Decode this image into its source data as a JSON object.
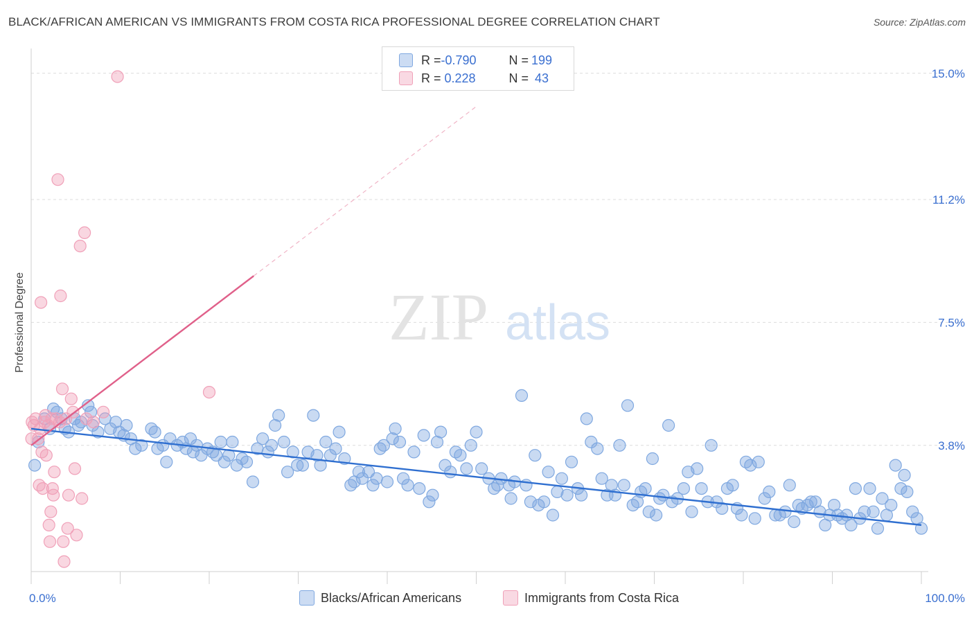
{
  "title": "BLACK/AFRICAN AMERICAN VS IMMIGRANTS FROM COSTA RICA PROFESSIONAL DEGREE CORRELATION CHART",
  "source": "Source: ZipAtlas.com",
  "watermark": {
    "zip": "ZIP",
    "atlas": "atlas"
  },
  "legend": {
    "rows": [
      {
        "r_label": "R = ",
        "r_value": "-0.790",
        "n_label": "N = ",
        "n_value": "199",
        "color": "#7fa8e0"
      },
      {
        "r_label": "R = ",
        "r_value": " 0.228",
        "n_label": "N = ",
        "n_value": " 43",
        "color": "#f0a0b8"
      }
    ]
  },
  "chart_data": {
    "type": "scatter",
    "ylabel": "Professional Degree",
    "xlabel": "",
    "xlim": [
      0,
      100
    ],
    "ylim": [
      0,
      15.6
    ],
    "x_tick_labels": [
      "0.0%",
      "100.0%"
    ],
    "y_ticks": [
      3.8,
      7.5,
      11.2,
      15.0
    ],
    "y_tick_labels": [
      "3.8%",
      "7.5%",
      "11.2%",
      "15.0%"
    ],
    "grid": "horizontal dashed",
    "series": [
      {
        "name": "Blacks/African Americans",
        "color": "#7fa8e0",
        "line_color": "#2f6fd0",
        "trend": {
          "x": [
            0,
            100
          ],
          "y": [
            4.3,
            1.4
          ]
        },
        "points": [
          [
            0.4,
            3.2
          ],
          [
            0.8,
            3.9
          ],
          [
            1.5,
            4.6
          ],
          [
            2.1,
            4.3
          ],
          [
            2.5,
            4.9
          ],
          [
            2.9,
            4.8
          ],
          [
            3.4,
            4.6
          ],
          [
            3.8,
            4.3
          ],
          [
            4.2,
            4.2
          ],
          [
            4.9,
            4.6
          ],
          [
            5.3,
            4.4
          ],
          [
            5.6,
            4.5
          ],
          [
            6.4,
            5.0
          ],
          [
            6.7,
            4.8
          ],
          [
            6.9,
            4.4
          ],
          [
            7.5,
            4.2
          ],
          [
            8.3,
            4.6
          ],
          [
            8.9,
            4.3
          ],
          [
            9.5,
            4.5
          ],
          [
            9.9,
            4.2
          ],
          [
            10.4,
            4.1
          ],
          [
            10.7,
            4.4
          ],
          [
            11.2,
            4.0
          ],
          [
            11.7,
            3.7
          ],
          [
            12.4,
            3.8
          ],
          [
            13.5,
            4.3
          ],
          [
            13.9,
            4.2
          ],
          [
            14.2,
            3.7
          ],
          [
            14.8,
            3.8
          ],
          [
            15.2,
            3.3
          ],
          [
            15.6,
            4.0
          ],
          [
            16.4,
            3.8
          ],
          [
            17.0,
            3.9
          ],
          [
            17.4,
            3.7
          ],
          [
            17.9,
            4.0
          ],
          [
            18.2,
            3.6
          ],
          [
            18.6,
            3.8
          ],
          [
            19.1,
            3.5
          ],
          [
            19.8,
            3.7
          ],
          [
            20.4,
            3.6
          ],
          [
            20.8,
            3.5
          ],
          [
            21.3,
            3.9
          ],
          [
            21.7,
            3.3
          ],
          [
            22.2,
            3.5
          ],
          [
            22.6,
            3.9
          ],
          [
            23.1,
            3.2
          ],
          [
            23.7,
            3.4
          ],
          [
            24.2,
            3.3
          ],
          [
            24.9,
            2.7
          ],
          [
            25.4,
            3.7
          ],
          [
            26.0,
            4.0
          ],
          [
            26.6,
            3.6
          ],
          [
            27.0,
            3.8
          ],
          [
            27.4,
            4.4
          ],
          [
            27.8,
            4.7
          ],
          [
            28.4,
            3.9
          ],
          [
            28.8,
            3.0
          ],
          [
            29.4,
            3.6
          ],
          [
            29.9,
            3.2
          ],
          [
            30.5,
            3.2
          ],
          [
            31.1,
            3.6
          ],
          [
            31.7,
            4.7
          ],
          [
            32.1,
            3.5
          ],
          [
            32.5,
            3.2
          ],
          [
            33.1,
            3.9
          ],
          [
            33.6,
            3.5
          ],
          [
            34.2,
            3.7
          ],
          [
            34.6,
            4.2
          ],
          [
            35.2,
            3.4
          ],
          [
            35.9,
            2.6
          ],
          [
            36.3,
            2.7
          ],
          [
            36.8,
            3.0
          ],
          [
            37.2,
            2.8
          ],
          [
            37.9,
            3.0
          ],
          [
            38.4,
            2.6
          ],
          [
            38.8,
            2.8
          ],
          [
            39.2,
            3.7
          ],
          [
            39.6,
            3.8
          ],
          [
            40.0,
            2.7
          ],
          [
            40.6,
            4.0
          ],
          [
            40.9,
            4.3
          ],
          [
            41.4,
            3.9
          ],
          [
            41.8,
            2.8
          ],
          [
            42.3,
            2.6
          ],
          [
            43.0,
            3.6
          ],
          [
            43.6,
            2.5
          ],
          [
            44.1,
            4.1
          ],
          [
            44.7,
            2.1
          ],
          [
            45.1,
            2.3
          ],
          [
            45.6,
            3.9
          ],
          [
            46.0,
            4.2
          ],
          [
            46.5,
            3.2
          ],
          [
            47.1,
            3.0
          ],
          [
            47.7,
            3.6
          ],
          [
            48.2,
            3.5
          ],
          [
            48.9,
            3.1
          ],
          [
            49.4,
            3.8
          ],
          [
            50.0,
            4.2
          ],
          [
            50.6,
            3.1
          ],
          [
            51.4,
            2.8
          ],
          [
            52.0,
            2.5
          ],
          [
            52.4,
            2.6
          ],
          [
            52.8,
            2.8
          ],
          [
            53.7,
            2.6
          ],
          [
            53.9,
            2.2
          ],
          [
            54.3,
            2.7
          ],
          [
            55.1,
            5.3
          ],
          [
            55.6,
            2.6
          ],
          [
            56.1,
            2.1
          ],
          [
            56.6,
            3.5
          ],
          [
            57.0,
            2.0
          ],
          [
            57.6,
            2.1
          ],
          [
            58.1,
            3.0
          ],
          [
            58.6,
            1.7
          ],
          [
            59.1,
            2.4
          ],
          [
            59.6,
            2.8
          ],
          [
            60.2,
            2.3
          ],
          [
            60.7,
            3.3
          ],
          [
            61.4,
            2.5
          ],
          [
            61.8,
            2.3
          ],
          [
            62.4,
            4.6
          ],
          [
            62.9,
            3.9
          ],
          [
            63.6,
            3.7
          ],
          [
            64.1,
            2.8
          ],
          [
            64.7,
            2.3
          ],
          [
            65.2,
            2.6
          ],
          [
            65.6,
            2.3
          ],
          [
            66.1,
            3.8
          ],
          [
            66.6,
            2.6
          ],
          [
            67.0,
            5.0
          ],
          [
            67.6,
            2.0
          ],
          [
            68.1,
            2.1
          ],
          [
            68.5,
            2.4
          ],
          [
            69.0,
            2.5
          ],
          [
            69.4,
            1.8
          ],
          [
            69.8,
            3.4
          ],
          [
            70.2,
            1.7
          ],
          [
            70.6,
            2.2
          ],
          [
            71.0,
            2.3
          ],
          [
            71.6,
            4.4
          ],
          [
            72.0,
            2.1
          ],
          [
            72.6,
            2.2
          ],
          [
            73.3,
            2.5
          ],
          [
            73.8,
            3.0
          ],
          [
            74.2,
            1.8
          ],
          [
            74.8,
            3.1
          ],
          [
            75.3,
            2.5
          ],
          [
            76.0,
            2.1
          ],
          [
            76.4,
            3.8
          ],
          [
            77.0,
            2.1
          ],
          [
            77.6,
            1.9
          ],
          [
            78.2,
            2.5
          ],
          [
            78.8,
            2.6
          ],
          [
            79.3,
            1.9
          ],
          [
            79.8,
            1.7
          ],
          [
            80.3,
            3.3
          ],
          [
            80.8,
            3.2
          ],
          [
            81.3,
            1.6
          ],
          [
            81.7,
            3.3
          ],
          [
            82.4,
            2.2
          ],
          [
            82.9,
            2.4
          ],
          [
            83.6,
            1.7
          ],
          [
            84.1,
            1.7
          ],
          [
            84.7,
            1.8
          ],
          [
            85.2,
            2.6
          ],
          [
            85.7,
            1.5
          ],
          [
            86.2,
            2.0
          ],
          [
            86.6,
            1.9
          ],
          [
            87.2,
            2.0
          ],
          [
            87.6,
            2.1
          ],
          [
            88.1,
            2.1
          ],
          [
            88.6,
            1.8
          ],
          [
            89.2,
            1.4
          ],
          [
            89.7,
            1.7
          ],
          [
            90.2,
            2.0
          ],
          [
            90.6,
            1.7
          ],
          [
            91.1,
            1.6
          ],
          [
            91.6,
            1.7
          ],
          [
            92.1,
            1.4
          ],
          [
            92.6,
            2.5
          ],
          [
            93.1,
            1.6
          ],
          [
            93.6,
            1.8
          ],
          [
            94.2,
            2.5
          ],
          [
            94.6,
            1.8
          ],
          [
            95.1,
            1.3
          ],
          [
            95.6,
            2.2
          ],
          [
            96.1,
            1.7
          ],
          [
            96.6,
            2.0
          ],
          [
            97.1,
            3.2
          ],
          [
            97.7,
            2.5
          ],
          [
            98.1,
            2.9
          ],
          [
            98.4,
            2.4
          ],
          [
            99.0,
            1.8
          ],
          [
            99.5,
            1.6
          ],
          [
            100.0,
            1.3
          ]
        ]
      },
      {
        "name": "Immigrants from Costa Rica",
        "color": "#f0a0b8",
        "line_color": "#e0608a",
        "trend": {
          "x": [
            0,
            25
          ],
          "y": [
            3.8,
            8.9
          ]
        },
        "trend_ext": {
          "x": [
            25,
            50
          ],
          "y": [
            8.9,
            14.0
          ]
        },
        "points": [
          [
            0.1,
            4.5
          ],
          [
            0.3,
            4.4
          ],
          [
            0.5,
            4.6
          ],
          [
            0.8,
            4.0
          ],
          [
            0.9,
            2.6
          ],
          [
            1.0,
            4.3
          ],
          [
            1.1,
            8.1
          ],
          [
            1.2,
            3.6
          ],
          [
            1.3,
            2.5
          ],
          [
            1.5,
            4.5
          ],
          [
            1.6,
            4.7
          ],
          [
            1.7,
            3.5
          ],
          [
            1.9,
            4.4
          ],
          [
            2.0,
            1.4
          ],
          [
            2.1,
            0.9
          ],
          [
            2.2,
            1.8
          ],
          [
            2.3,
            4.6
          ],
          [
            2.4,
            2.5
          ],
          [
            2.5,
            2.3
          ],
          [
            2.6,
            3.0
          ],
          [
            2.8,
            4.6
          ],
          [
            3.0,
            11.8
          ],
          [
            3.2,
            4.5
          ],
          [
            3.3,
            8.3
          ],
          [
            3.5,
            5.5
          ],
          [
            3.6,
            0.9
          ],
          [
            3.7,
            0.3
          ],
          [
            3.9,
            4.6
          ],
          [
            4.1,
            1.3
          ],
          [
            4.2,
            2.3
          ],
          [
            4.5,
            5.2
          ],
          [
            4.7,
            4.8
          ],
          [
            4.9,
            3.1
          ],
          [
            5.1,
            1.1
          ],
          [
            5.5,
            9.8
          ],
          [
            5.7,
            2.2
          ],
          [
            6.0,
            10.2
          ],
          [
            6.2,
            4.6
          ],
          [
            7.0,
            4.5
          ],
          [
            8.1,
            4.8
          ],
          [
            9.7,
            14.9
          ],
          [
            20.0,
            5.4
          ],
          [
            0.05,
            4.0
          ]
        ]
      }
    ]
  },
  "bottom_legend": [
    {
      "label": "Blacks/African Americans",
      "color": "#7fa8e0"
    },
    {
      "label": "Immigrants from Costa Rica",
      "color": "#f0a0b8"
    }
  ]
}
